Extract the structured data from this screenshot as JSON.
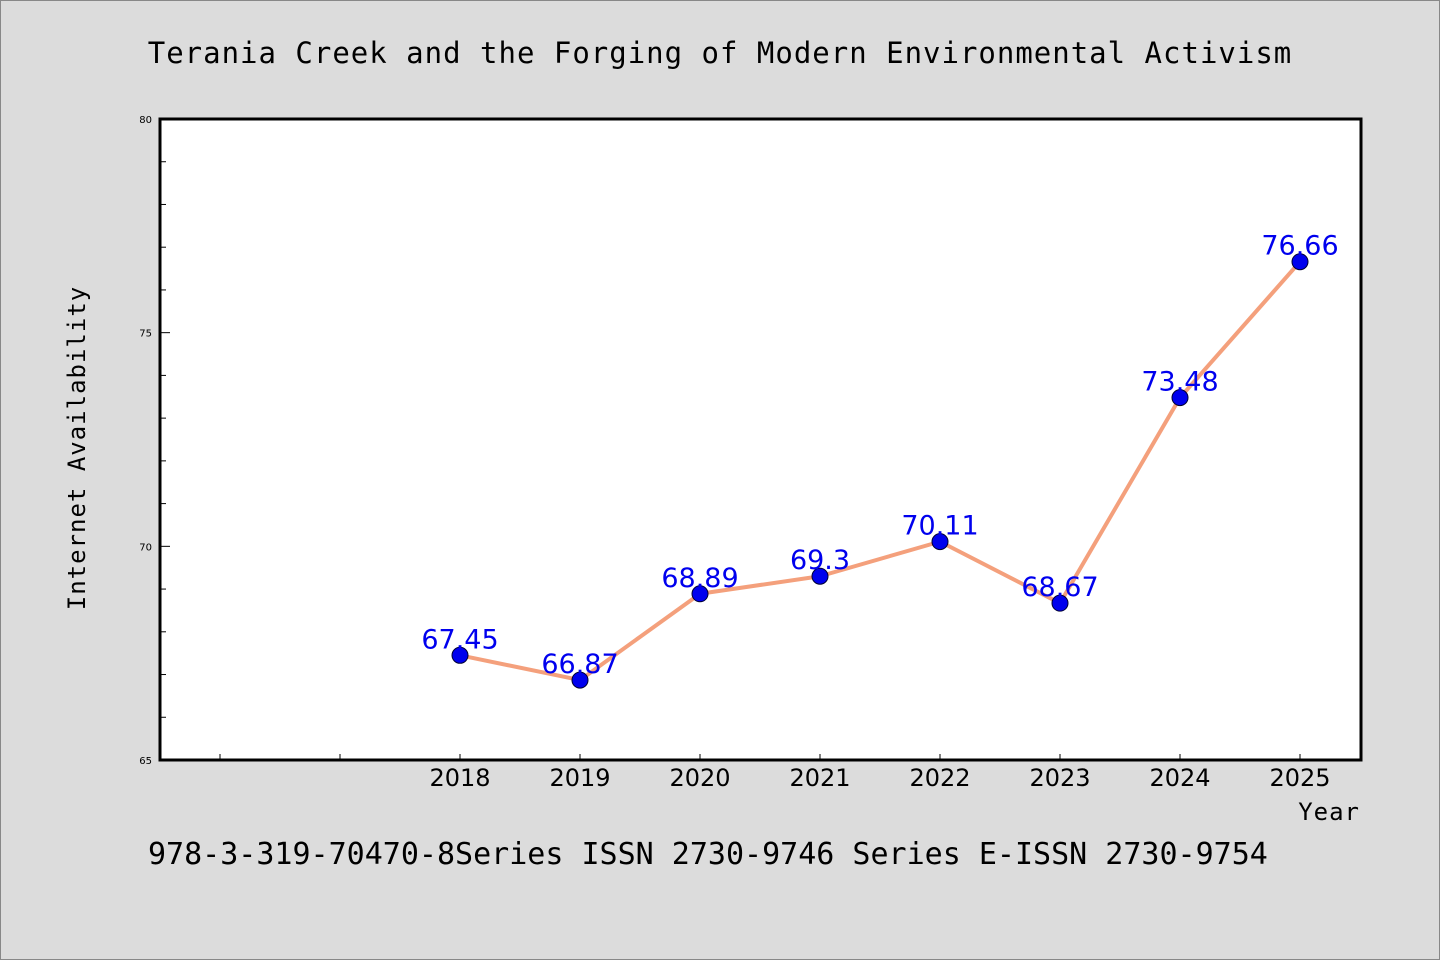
{
  "chart_data": {
    "type": "line",
    "title": "Terania Creek and the Forging of Modern Environmental Activism",
    "xlabel": "Year",
    "ylabel": "Internet Availability",
    "footer": "978-3-319-70470-8Series ISSN 2730-9746 Series E-ISSN 2730-9754",
    "x": [
      "2018",
      "2019",
      "2020",
      "2021",
      "2022",
      "2023",
      "2024",
      "2025"
    ],
    "series": [
      {
        "values": [
          67.45,
          66.87,
          68.89,
          69.3,
          70.11,
          68.67,
          73.48,
          76.66
        ],
        "data_labels": [
          "67.45",
          "66.87",
          "68.89",
          "69.3",
          "70.11",
          "68.67",
          "73.48",
          "76.66"
        ],
        "line_color": "#f4a07c",
        "marker_color": "#0000ee",
        "label_color": "#0000ee"
      }
    ],
    "ylim": [
      65,
      80
    ],
    "y_ticks": [
      65,
      70,
      75,
      80
    ],
    "y_tick_labels": [
      "65",
      "70",
      "75",
      "80"
    ],
    "xlim_extra_leading_ticks": 2,
    "grid": false,
    "legend": "none",
    "background_color": "#dcdcdc",
    "plot_background_color": "#ffffff"
  }
}
